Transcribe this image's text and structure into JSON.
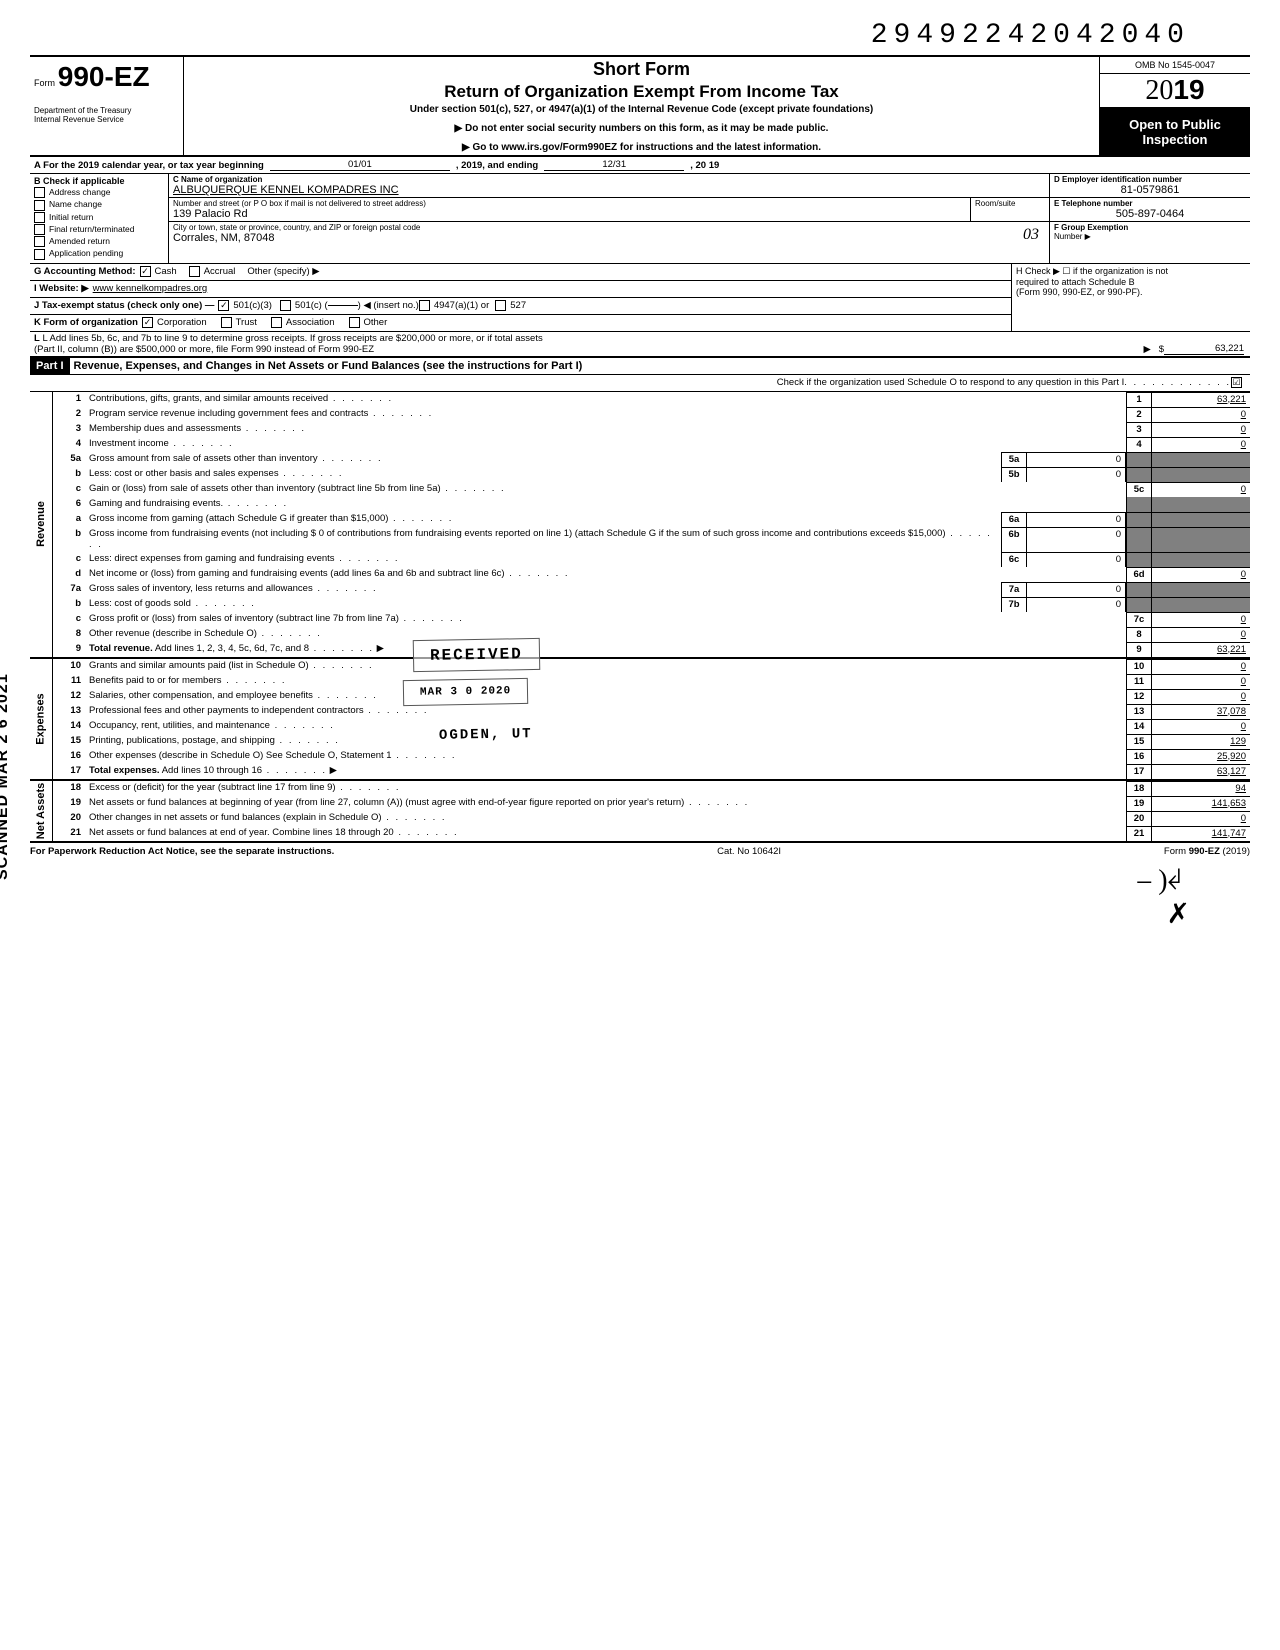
{
  "doc_id": "29492242042040",
  "omb": "OMB No 1545-0047",
  "year": "2019",
  "form_label": "Form",
  "form_number": "990-EZ",
  "short_form": "Short Form",
  "main_title": "Return of Organization Exempt From Income Tax",
  "subtitle": "Under section 501(c), 527, or 4947(a)(1) of the Internal Revenue Code (except private foundations)",
  "instr1": "▶ Do not enter social security numbers on this form, as it may be made public.",
  "instr2": "▶ Go to www.irs.gov/Form990EZ for instructions and the latest information.",
  "open_public_1": "Open to Public",
  "open_public_2": "Inspection",
  "dept1": "Department of the Treasury",
  "dept2": "Internal Revenue Service",
  "line_a_pre": "A  For the 2019 calendar year, or tax year beginning",
  "line_a_begin": "01/01",
  "line_a_mid": ", 2019, and ending",
  "line_a_end": "12/31",
  "line_a_yr": ", 20   19",
  "b_hdr": "B  Check if applicable",
  "b_opts": [
    "Address change",
    "Name change",
    "Initial return",
    "Final return/terminated",
    "Amended return",
    "Application pending"
  ],
  "c_lbl": "C  Name of organization",
  "c_val": "ALBUQUERQUE KENNEL KOMPADRES INC",
  "c_addr_lbl": "Number and street (or P O  box if mail is not delivered to street address)",
  "c_room_lbl": "Room/suite",
  "c_addr": "139 Palacio Rd",
  "c_city_lbl": "City or town, state or province, country, and ZIP or foreign postal code",
  "c_city": "Corrales, NM,  87048",
  "c_handwritten": "03",
  "d_lbl": "D Employer identification number",
  "d_val": "81-0579861",
  "e_lbl": "E  Telephone number",
  "e_val": "505-897-0464",
  "f_lbl": "F  Group Exemption",
  "f_lbl2": "Number ▶",
  "g_lbl": "G  Accounting Method:",
  "g_cash": "Cash",
  "g_accrual": "Accrual",
  "g_other": "Other (specify) ▶",
  "h_line1": "H  Check ▶ ☐ if the organization is not",
  "h_line2": "required to attach Schedule B",
  "h_line3": "(Form 990, 990-EZ, or 990-PF).",
  "i_lbl": "I   Website: ▶",
  "i_val": "www kennelkompadres.org",
  "j_lbl": "J  Tax-exempt status (check only one) —",
  "j_501c3": "501(c)(3)",
  "j_501c": "501(c) (",
  "j_insert": ") ◀ (insert no.)",
  "j_4947": "4947(a)(1) or",
  "j_527": "527",
  "k_lbl": "K  Form of organization",
  "k_corp": "Corporation",
  "k_trust": "Trust",
  "k_assoc": "Association",
  "k_other": "Other",
  "l_line1": "L  Add lines 5b, 6c, and 7b to line 9 to determine gross receipts. If gross receipts are $200,000 or more, or if total assets",
  "l_line2": "(Part II, column (B)) are $500,000 or more, file Form 990 instead of Form 990-EZ",
  "l_val": "63,221",
  "part1_hdr": "Part I",
  "part1_title": "Revenue, Expenses, and Changes in Net Assets or Fund Balances (see the instructions for Part I)",
  "part1_check": "Check if the organization used Schedule O to respond to any question in this Part I",
  "part1_check_mark": "☑",
  "side_rev": "Revenue",
  "side_exp": "Expenses",
  "side_net": "Net Assets",
  "side_stamp": "SCANNED MAR 2 6 2021",
  "rev_lines": [
    {
      "n": "1",
      "d": "Contributions, gifts, grants, and similar amounts received",
      "rn": "1",
      "rv": "63,221"
    },
    {
      "n": "2",
      "d": "Program service revenue including government fees and contracts",
      "rn": "2",
      "rv": "0"
    },
    {
      "n": "3",
      "d": "Membership dues and assessments",
      "rn": "3",
      "rv": "0"
    },
    {
      "n": "4",
      "d": "Investment income",
      "rn": "4",
      "rv": "0"
    },
    {
      "n": "5a",
      "d": "Gross amount from sale of assets other than inventory",
      "mn": "5a",
      "mv": "0"
    },
    {
      "n": "b",
      "d": "Less: cost or other basis and sales expenses",
      "mn": "5b",
      "mv": "0"
    },
    {
      "n": "c",
      "d": "Gain or (loss) from sale of assets other than inventory (subtract line 5b from line 5a)",
      "rn": "5c",
      "rv": "0"
    },
    {
      "n": "6",
      "d": "Gaming and fundraising events."
    },
    {
      "n": "a",
      "d": "Gross income from gaming (attach Schedule G if greater than $15,000)",
      "mn": "6a",
      "mv": "0"
    },
    {
      "n": "b",
      "d": "Gross income from fundraising events (not including  $                       0 of contributions from fundraising events reported on line 1) (attach Schedule G if the sum of such gross income and contributions exceeds $15,000)",
      "mn": "6b",
      "mv": "0"
    },
    {
      "n": "c",
      "d": "Less: direct expenses from gaming and fundraising events",
      "mn": "6c",
      "mv": "0"
    },
    {
      "n": "d",
      "d": "Net income or (loss) from gaming and fundraising events (add lines 6a and 6b and subtract line 6c)",
      "rn": "6d",
      "rv": "0"
    },
    {
      "n": "7a",
      "d": "Gross sales of inventory, less returns and allowances",
      "mn": "7a",
      "mv": "0"
    },
    {
      "n": "b",
      "d": "Less: cost of goods sold",
      "mn": "7b",
      "mv": "0"
    },
    {
      "n": "c",
      "d": "Gross profit or (loss) from sales of inventory (subtract line 7b from line 7a)",
      "rn": "7c",
      "rv": "0"
    },
    {
      "n": "8",
      "d": "Other revenue (describe in Schedule O)",
      "rn": "8",
      "rv": "0"
    },
    {
      "n": "9",
      "d": "Total revenue. Add lines 1, 2, 3, 4, 5c, 6d, 7c, and 8",
      "rn": "9",
      "rv": "63,221",
      "bold": true
    }
  ],
  "exp_lines": [
    {
      "n": "10",
      "d": "Grants and similar amounts paid (list in Schedule O)",
      "rn": "10",
      "rv": "0"
    },
    {
      "n": "11",
      "d": "Benefits paid to or for members",
      "rn": "11",
      "rv": "0"
    },
    {
      "n": "12",
      "d": "Salaries, other compensation, and employee benefits",
      "rn": "12",
      "rv": "0"
    },
    {
      "n": "13",
      "d": "Professional fees and other payments to independent contractors",
      "rn": "13",
      "rv": "37,078"
    },
    {
      "n": "14",
      "d": "Occupancy, rent, utilities, and maintenance",
      "rn": "14",
      "rv": "0"
    },
    {
      "n": "15",
      "d": "Printing, publications, postage, and shipping",
      "rn": "15",
      "rv": "129"
    },
    {
      "n": "16",
      "d": "Other expenses (describe in Schedule O)   See Schedule O, Statement 1",
      "rn": "16",
      "rv": "25,920"
    },
    {
      "n": "17",
      "d": "Total expenses. Add lines 10 through 16",
      "rn": "17",
      "rv": "63,127",
      "bold": true
    }
  ],
  "net_lines": [
    {
      "n": "18",
      "d": "Excess or (deficit) for the year (subtract line 17 from line 9)",
      "rn": "18",
      "rv": "94"
    },
    {
      "n": "19",
      "d": "Net assets or fund balances at beginning of year (from line 27, column (A)) (must agree with end-of-year figure reported on prior year's return)",
      "rn": "19",
      "rv": "141,653"
    },
    {
      "n": "20",
      "d": "Other changes in net assets or fund balances (explain in Schedule O)",
      "rn": "20",
      "rv": "0"
    },
    {
      "n": "21",
      "d": "Net assets or fund balances at end of year. Combine lines 18 through 20",
      "rn": "21",
      "rv": "141,747"
    }
  ],
  "stamp_received": "RECEIVED",
  "stamp_date": "MAR 3 0 2020",
  "stamp_ogden": "OGDEN, UT",
  "footer_left": "For Paperwork Reduction Act Notice, see the separate instructions.",
  "footer_cat": "Cat. No  10642I",
  "footer_form": "Form 990-EZ (2019)"
}
